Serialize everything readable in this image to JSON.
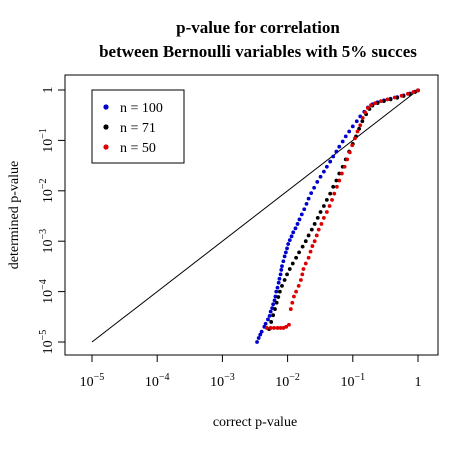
{
  "chart_data": {
    "type": "scatter",
    "title": [
      "p-value for correlation",
      "between Bernoulli variables with 5% succes"
    ],
    "xlabel": "correct p-value",
    "ylabel": "determined p-value",
    "scale": "log10",
    "xlim": [
      1e-05,
      1
    ],
    "ylim": [
      1e-05,
      1
    ],
    "x_ticks": [
      {
        "value": 1e-05,
        "base": "10",
        "exp": "−5"
      },
      {
        "value": 0.0001,
        "base": "10",
        "exp": "−4"
      },
      {
        "value": 0.001,
        "base": "10",
        "exp": "−3"
      },
      {
        "value": 0.01,
        "base": "10",
        "exp": "−2"
      },
      {
        "value": 0.1,
        "base": "10",
        "exp": "−1"
      },
      {
        "value": 1,
        "base": "1",
        "exp": ""
      }
    ],
    "y_ticks": [
      {
        "value": 1e-05,
        "base": "10",
        "exp": "−5"
      },
      {
        "value": 0.0001,
        "base": "10",
        "exp": "−4"
      },
      {
        "value": 0.001,
        "base": "10",
        "exp": "−3"
      },
      {
        "value": 0.01,
        "base": "10",
        "exp": "−2"
      },
      {
        "value": 0.1,
        "base": "10",
        "exp": "−1"
      },
      {
        "value": 1,
        "base": "1",
        "exp": ""
      }
    ],
    "reference_line": {
      "from": [
        1e-05,
        1e-05
      ],
      "to": [
        1,
        1
      ],
      "color": "#000000"
    },
    "legend_position": "top-left",
    "series": [
      {
        "name": "n = 100",
        "color": "#0000cc",
        "points": [
          [
            0.0034,
            1e-05
          ],
          [
            0.0036,
            1.2e-05
          ],
          [
            0.0038,
            1.4e-05
          ],
          [
            0.004,
            1.6e-05
          ],
          [
            0.0044,
            2e-05
          ],
          [
            0.0046,
            2.3e-05
          ],
          [
            0.005,
            2.8e-05
          ],
          [
            0.0053,
            3.3e-05
          ],
          [
            0.0055,
            4e-05
          ],
          [
            0.0058,
            4.7e-05
          ],
          [
            0.006,
            5.6e-05
          ],
          [
            0.0063,
            6.7e-05
          ],
          [
            0.0065,
            8e-05
          ],
          [
            0.0067,
            0.0001
          ],
          [
            0.007,
            0.00012
          ],
          [
            0.0073,
            0.00015
          ],
          [
            0.0075,
            0.00018
          ],
          [
            0.0078,
            0.00022
          ],
          [
            0.008,
            0.00027
          ],
          [
            0.0082,
            0.00032
          ],
          [
            0.0086,
            0.0004
          ],
          [
            0.009,
            0.0005
          ],
          [
            0.0094,
            0.0006
          ],
          [
            0.0098,
            0.00072
          ],
          [
            0.0102,
            0.00088
          ],
          [
            0.0108,
            0.00105
          ],
          [
            0.0115,
            0.00125
          ],
          [
            0.0122,
            0.0015
          ],
          [
            0.0132,
            0.0018
          ],
          [
            0.0142,
            0.0022
          ],
          [
            0.0152,
            0.0027
          ],
          [
            0.0165,
            0.0034
          ],
          [
            0.018,
            0.0043
          ],
          [
            0.0195,
            0.0055
          ],
          [
            0.021,
            0.007
          ],
          [
            0.023,
            0.009
          ],
          [
            0.0255,
            0.0115
          ],
          [
            0.0285,
            0.015
          ],
          [
            0.032,
            0.019
          ],
          [
            0.036,
            0.024
          ],
          [
            0.04,
            0.03
          ],
          [
            0.045,
            0.038
          ],
          [
            0.05,
            0.048
          ],
          [
            0.056,
            0.06
          ],
          [
            0.062,
            0.075
          ],
          [
            0.07,
            0.095
          ],
          [
            0.078,
            0.12
          ],
          [
            0.088,
            0.15
          ],
          [
            0.1,
            0.19
          ],
          [
            0.115,
            0.24
          ],
          [
            0.13,
            0.3
          ],
          [
            0.15,
            0.37
          ],
          [
            0.17,
            0.45
          ],
          [
            0.2,
            0.52
          ],
          [
            0.24,
            0.57
          ],
          [
            0.3,
            0.62
          ],
          [
            0.38,
            0.67
          ],
          [
            0.48,
            0.72
          ],
          [
            0.6,
            0.78
          ],
          [
            0.75,
            0.85
          ],
          [
            0.9,
            0.93
          ],
          [
            1.0,
            0.99
          ]
        ]
      },
      {
        "name": "n = 71",
        "color": "#000000",
        "points": [
          [
            0.0052,
            1.8e-05
          ],
          [
            0.0056,
            2.5e-05
          ],
          [
            0.006,
            3.4e-05
          ],
          [
            0.0064,
            4.5e-05
          ],
          [
            0.0068,
            6e-05
          ],
          [
            0.0072,
            7.8e-05
          ],
          [
            0.0076,
            0.0001
          ],
          [
            0.0082,
            0.00013
          ],
          [
            0.009,
            0.00017
          ],
          [
            0.0098,
            0.00022
          ],
          [
            0.0108,
            0.00028
          ],
          [
            0.012,
            0.00036
          ],
          [
            0.0135,
            0.00047
          ],
          [
            0.015,
            0.0006
          ],
          [
            0.017,
            0.00078
          ],
          [
            0.019,
            0.001
          ],
          [
            0.021,
            0.0013
          ],
          [
            0.0235,
            0.0017
          ],
          [
            0.026,
            0.0022
          ],
          [
            0.029,
            0.0029
          ],
          [
            0.032,
            0.0038
          ],
          [
            0.036,
            0.005
          ],
          [
            0.04,
            0.0066
          ],
          [
            0.045,
            0.0088
          ],
          [
            0.05,
            0.012
          ],
          [
            0.056,
            0.016
          ],
          [
            0.062,
            0.022
          ],
          [
            0.07,
            0.03
          ],
          [
            0.078,
            0.042
          ],
          [
            0.088,
            0.06
          ],
          [
            0.1,
            0.085
          ],
          [
            0.112,
            0.12
          ],
          [
            0.125,
            0.17
          ],
          [
            0.14,
            0.24
          ],
          [
            0.16,
            0.33
          ],
          [
            0.18,
            0.42
          ],
          [
            0.2,
            0.49
          ],
          [
            0.24,
            0.55
          ],
          [
            0.3,
            0.6
          ],
          [
            0.38,
            0.65
          ],
          [
            0.48,
            0.7
          ],
          [
            0.6,
            0.76
          ],
          [
            0.75,
            0.83
          ],
          [
            0.9,
            0.91
          ],
          [
            1.0,
            0.98
          ]
        ]
      },
      {
        "name": "n = 50",
        "color": "#dd0000",
        "points": [
          [
            0.0048,
            1.9e-05
          ],
          [
            0.0055,
            1.9e-05
          ],
          [
            0.0062,
            1.9e-05
          ],
          [
            0.007,
            1.9e-05
          ],
          [
            0.0078,
            1.9e-05
          ],
          [
            0.0086,
            1.9e-05
          ],
          [
            0.0095,
            2e-05
          ],
          [
            0.0105,
            2.2e-05
          ],
          [
            0.0112,
            4.5e-05
          ],
          [
            0.0118,
            6e-05
          ],
          [
            0.0125,
            8e-05
          ],
          [
            0.0135,
            0.0001
          ],
          [
            0.0148,
            0.00013
          ],
          [
            0.016,
            0.00017
          ],
          [
            0.0168,
            0.00022
          ],
          [
            0.0175,
            0.00028
          ],
          [
            0.019,
            0.00036
          ],
          [
            0.021,
            0.00047
          ],
          [
            0.0225,
            0.00062
          ],
          [
            0.024,
            0.0008
          ],
          [
            0.026,
            0.001
          ],
          [
            0.028,
            0.0013
          ],
          [
            0.03,
            0.0017
          ],
          [
            0.033,
            0.0022
          ],
          [
            0.036,
            0.0029
          ],
          [
            0.04,
            0.0038
          ],
          [
            0.044,
            0.005
          ],
          [
            0.048,
            0.0066
          ],
          [
            0.052,
            0.0088
          ],
          [
            0.057,
            0.012
          ],
          [
            0.062,
            0.016
          ],
          [
            0.068,
            0.022
          ],
          [
            0.075,
            0.03
          ],
          [
            0.082,
            0.042
          ],
          [
            0.09,
            0.058
          ],
          [
            0.098,
            0.08
          ],
          [
            0.108,
            0.11
          ],
          [
            0.118,
            0.15
          ],
          [
            0.13,
            0.2
          ],
          [
            0.142,
            0.28
          ],
          [
            0.155,
            0.36
          ],
          [
            0.17,
            0.44
          ],
          [
            0.19,
            0.5
          ],
          [
            0.22,
            0.55
          ],
          [
            0.27,
            0.6
          ],
          [
            0.34,
            0.65
          ],
          [
            0.44,
            0.71
          ],
          [
            0.56,
            0.77
          ],
          [
            0.7,
            0.84
          ],
          [
            0.85,
            0.91
          ],
          [
            1.0,
            0.98
          ]
        ]
      }
    ]
  }
}
